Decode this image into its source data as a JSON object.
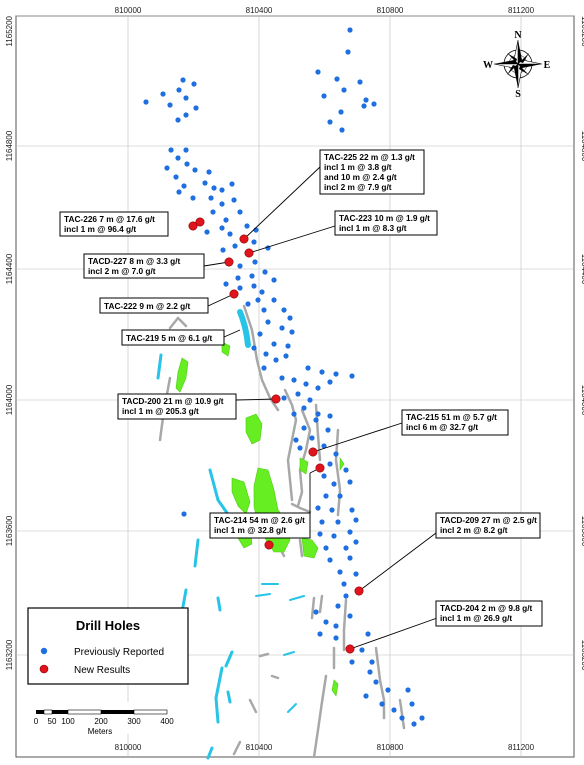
{
  "map": {
    "grid": {
      "x_labels": [
        "810000",
        "810400",
        "810800",
        "811200"
      ],
      "y_labels": [
        "1165200",
        "1164800",
        "1164400",
        "1164000",
        "1163600",
        "1163200"
      ]
    },
    "compass": {
      "n": "N",
      "s": "S",
      "e": "E",
      "w": "W"
    },
    "legend": {
      "title": "Drill Holes",
      "items": [
        {
          "label": "Previously Reported",
          "color": "#1f6fe0"
        },
        {
          "label": "New Results",
          "color": "#e0141c"
        }
      ]
    },
    "scale": {
      "labels": [
        "0",
        "50",
        "100",
        "200",
        "300",
        "400"
      ],
      "unit": "Meters"
    },
    "callouts": [
      {
        "lines": [
          "TAC-225  22 m @ 1.3 g/t",
          "incl 1 m @ 3.8 g/t",
          "and 10 m @ 2.4 g/t",
          "incl 2 m @ 7.9 g/t"
        ]
      },
      {
        "lines": [
          "TAC-226  7 m @ 17.6 g/t",
          "incl  1 m @ 96.4 g/t"
        ]
      },
      {
        "lines": [
          "TAC-223  10 m @ 1.9 g/t",
          "incl 1 m @ 8.3 g/t"
        ]
      },
      {
        "lines": [
          "TACD-227  8 m @ 3.3 g/t",
          "incl  2 m @ 7.0 g/t"
        ]
      },
      {
        "lines": [
          "TAC-222  9 m @ 2.2 g/t"
        ]
      },
      {
        "lines": [
          "TAC-219  5 m @ 6.1 g/t"
        ]
      },
      {
        "lines": [
          "TACD-200  21 m @ 10.9 g/t",
          "incl 1 m @ 205.3 g/t"
        ]
      },
      {
        "lines": [
          "TAC-215  51 m @ 5.7 g/t",
          "incl 6 m @ 32.7 g/t"
        ]
      },
      {
        "lines": [
          "TAC-214  54 m @ 2.6 g/t",
          "incl 1 m @ 32.8 g/t"
        ]
      },
      {
        "lines": [
          "TACD-209  27 m @ 2.5 g/t",
          "incl 2 m @ 8.2 g/t"
        ]
      },
      {
        "lines": [
          "TACD-204  2 m @ 9.8 g/t",
          "incl 1 m @ 26.9 g/t"
        ]
      }
    ],
    "colors": {
      "previous": "#1f6fe0",
      "new": "#e0141c",
      "green": "#66ee22",
      "cyan": "#27c4e8",
      "gray": "#a8a8a8",
      "grid": "#bdbdbd"
    }
  }
}
